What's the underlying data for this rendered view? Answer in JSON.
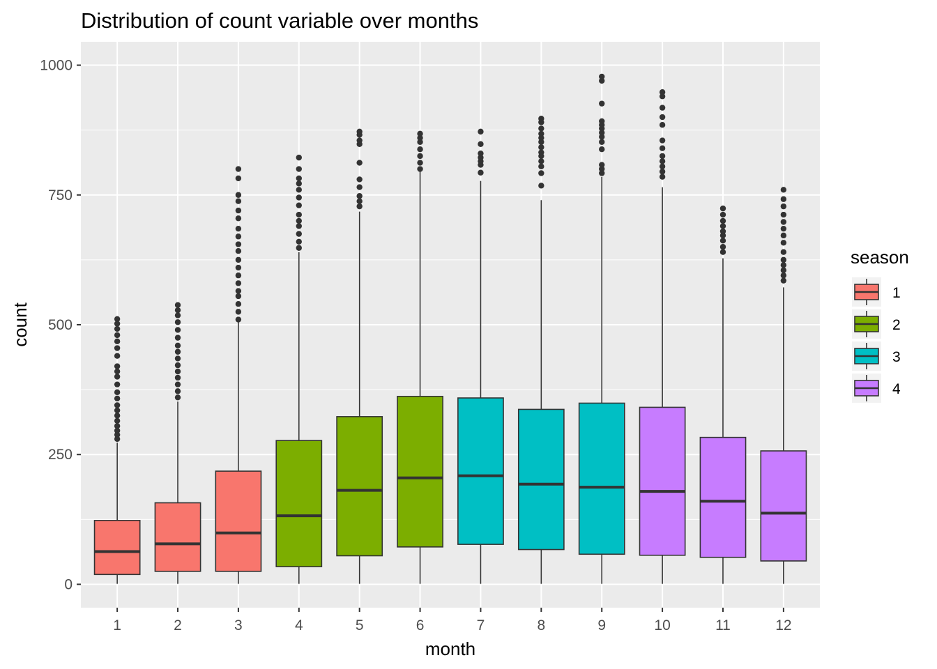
{
  "chart_data": {
    "type": "boxplot",
    "title": "Distribution of count variable over months",
    "xlabel": "month",
    "ylabel": "count",
    "ylim": [
      -45,
      1045
    ],
    "yticks": [
      0,
      250,
      500,
      750,
      1000
    ],
    "grid": true,
    "legend": {
      "title": "season",
      "position": "right",
      "entries": [
        {
          "label": "1",
          "color": "#F8766D"
        },
        {
          "label": "2",
          "color": "#7CAE00"
        },
        {
          "label": "3",
          "color": "#00BFC4"
        },
        {
          "label": "4",
          "color": "#C77CFF"
        }
      ]
    },
    "categories": [
      "1",
      "2",
      "3",
      "4",
      "5",
      "6",
      "7",
      "8",
      "9",
      "10",
      "11",
      "12"
    ],
    "boxes": [
      {
        "month": "1",
        "season": "1",
        "min": 1,
        "q1": 19,
        "median": 63,
        "q3": 123,
        "whisker_high": 273,
        "outliers": [
          280,
          288,
          296,
          305,
          315,
          325,
          335,
          345,
          358,
          370,
          385,
          400,
          410,
          420,
          440,
          455,
          468,
          480,
          492,
          502,
          511
        ]
      },
      {
        "month": "2",
        "season": "1",
        "min": 1,
        "q1": 25,
        "median": 78,
        "q3": 157,
        "whisker_high": 352,
        "outliers": [
          360,
          372,
          385,
          398,
          410,
          422,
          435,
          448,
          460,
          475,
          490,
          505,
          518,
          528,
          538
        ]
      },
      {
        "month": "3",
        "season": "1",
        "min": 1,
        "q1": 25,
        "median": 99,
        "q3": 218,
        "whisker_high": 505,
        "outliers": [
          510,
          525,
          540,
          555,
          565,
          580,
          595,
          610,
          625,
          642,
          655,
          670,
          685,
          705,
          720,
          738,
          750,
          782,
          800
        ]
      },
      {
        "month": "4",
        "season": "2",
        "min": 1,
        "q1": 34,
        "median": 132,
        "q3": 277,
        "whisker_high": 640,
        "outliers": [
          648,
          660,
          675,
          690,
          700,
          712,
          730,
          745,
          760,
          772,
          782,
          800,
          822
        ]
      },
      {
        "month": "5",
        "season": "2",
        "min": 1,
        "q1": 55,
        "median": 181,
        "q3": 323,
        "whisker_high": 718,
        "outliers": [
          728,
          738,
          748,
          765,
          780,
          812,
          848,
          855,
          866,
          872
        ]
      },
      {
        "month": "6",
        "season": "2",
        "min": 1,
        "q1": 72,
        "median": 205,
        "q3": 362,
        "whisker_high": 795,
        "outliers": [
          800,
          812,
          825,
          838,
          852,
          860,
          868
        ]
      },
      {
        "month": "7",
        "season": "3",
        "min": 1,
        "q1": 77,
        "median": 209,
        "q3": 359,
        "whisker_high": 777,
        "outliers": [
          793,
          808,
          815,
          822,
          830,
          848,
          872
        ]
      },
      {
        "month": "8",
        "season": "3",
        "min": 1,
        "q1": 67,
        "median": 193,
        "q3": 337,
        "whisker_high": 740,
        "outliers": [
          768,
          792,
          805,
          815,
          825,
          832,
          842,
          852,
          860,
          868,
          878,
          890,
          897
        ]
      },
      {
        "month": "9",
        "season": "3",
        "min": 1,
        "q1": 58,
        "median": 187,
        "q3": 349,
        "whisker_high": 785,
        "outliers": [
          792,
          800,
          808,
          838,
          852,
          862,
          870,
          878,
          885,
          892,
          926,
          970,
          978
        ]
      },
      {
        "month": "10",
        "season": "4",
        "min": 1,
        "q1": 56,
        "median": 179,
        "q3": 341,
        "whisker_high": 765,
        "outliers": [
          785,
          795,
          805,
          815,
          825,
          840,
          855,
          885,
          900,
          918,
          940,
          948
        ]
      },
      {
        "month": "11",
        "season": "4",
        "min": 1,
        "q1": 52,
        "median": 160,
        "q3": 283,
        "whisker_high": 628,
        "outliers": [
          640,
          650,
          662,
          672,
          680,
          690,
          700,
          712,
          724
        ]
      },
      {
        "month": "12",
        "season": "4",
        "min": 1,
        "q1": 45,
        "median": 137,
        "q3": 257,
        "whisker_high": 572,
        "outliers": [
          585,
          595,
          605,
          615,
          625,
          640,
          658,
          672,
          685,
          698,
          712,
          728,
          742,
          760
        ]
      }
    ]
  }
}
